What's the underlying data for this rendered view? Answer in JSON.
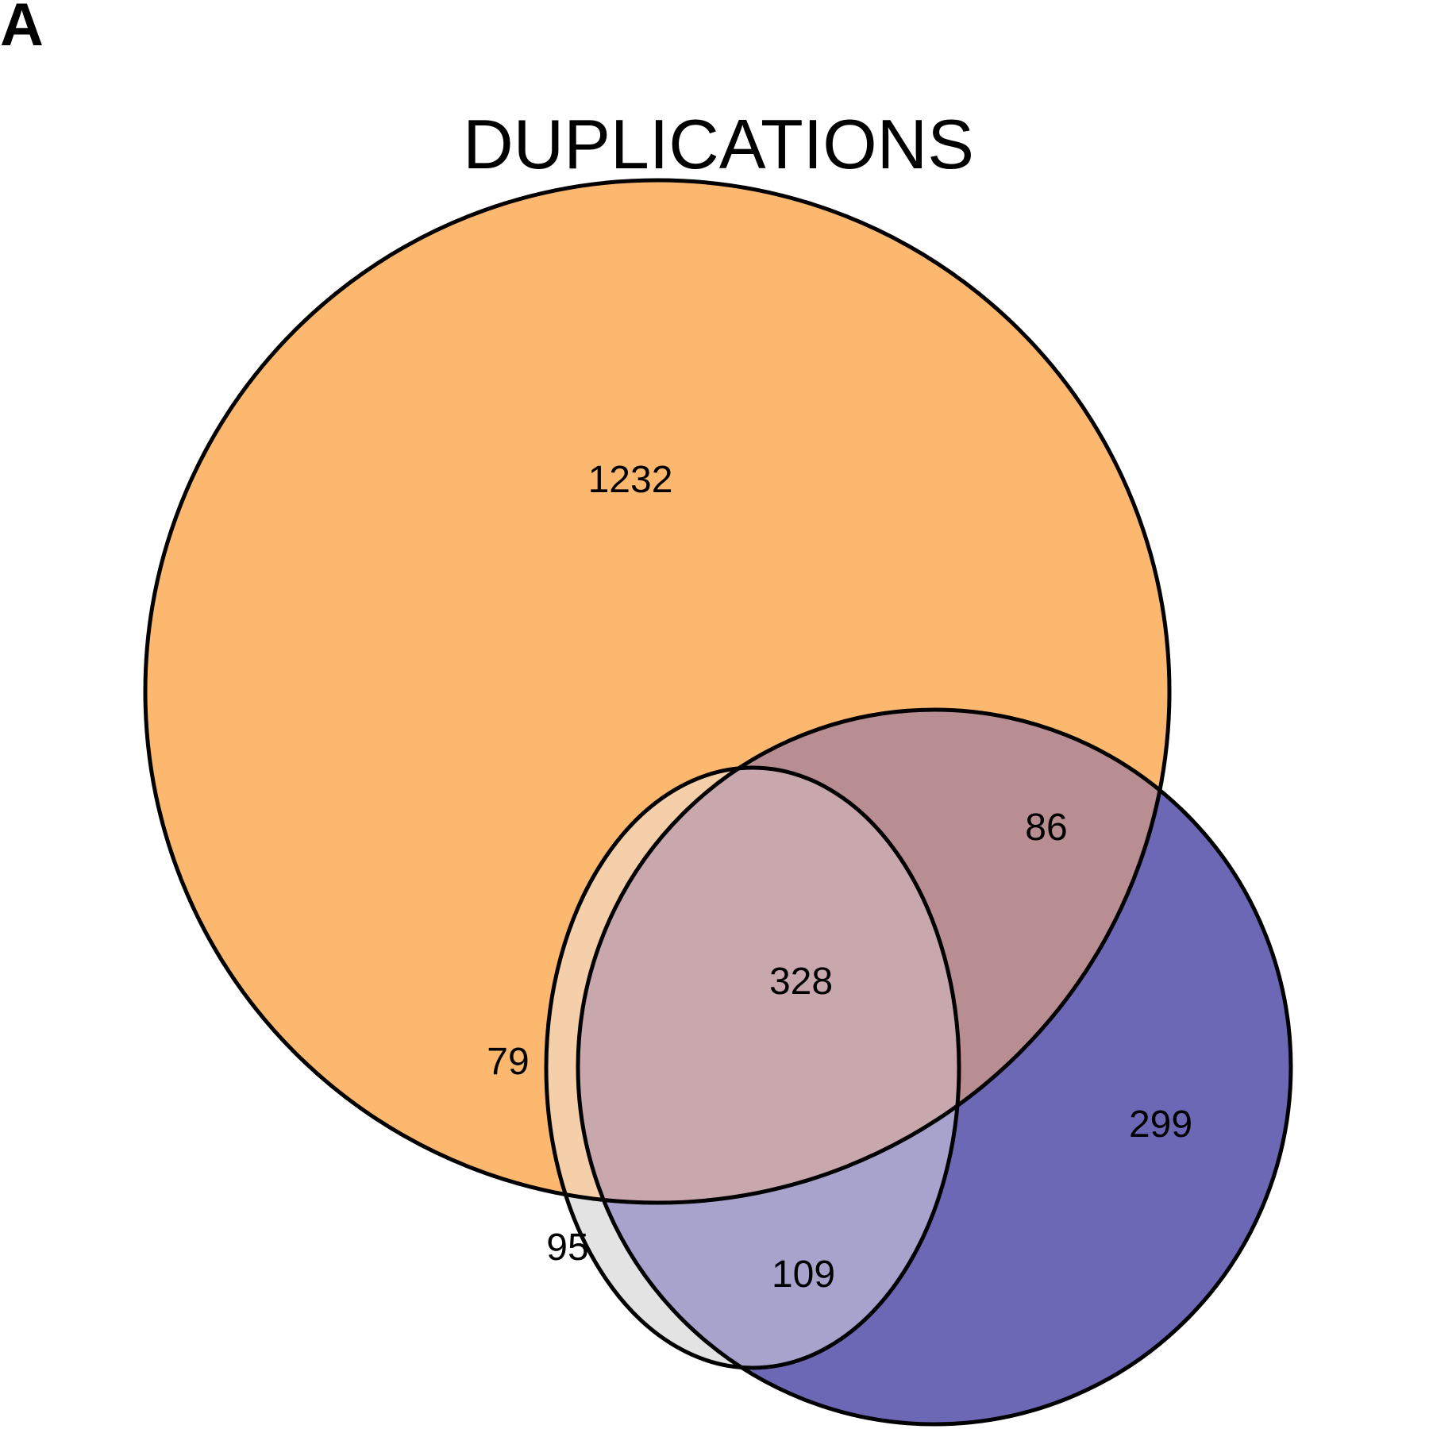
{
  "panel_label": "A",
  "chart_data": {
    "type": "venn",
    "title": "DUPLICATIONS",
    "sets": [
      {
        "id": "A",
        "color": "#fdb870"
      },
      {
        "id": "B",
        "color": "#e3e3e3"
      },
      {
        "id": "C",
        "color": "#6d68b6"
      }
    ],
    "regions": [
      {
        "sets": [
          "A"
        ],
        "value": 1232,
        "color": "#fdb870"
      },
      {
        "sets": [
          "A",
          "B"
        ],
        "value": 79,
        "color": "#f4cfa9"
      },
      {
        "sets": [
          "A",
          "C"
        ],
        "value": 86,
        "color": "#b88e93"
      },
      {
        "sets": [
          "A",
          "B",
          "C"
        ],
        "value": 328,
        "color": "#c8a8ad"
      },
      {
        "sets": [
          "B"
        ],
        "value": 95,
        "color": "#e3e3e3"
      },
      {
        "sets": [
          "B",
          "C"
        ],
        "value": 109,
        "color": "#a7a3cc"
      },
      {
        "sets": [
          "C"
        ],
        "value": 299,
        "color": "#6d68b6"
      }
    ]
  }
}
